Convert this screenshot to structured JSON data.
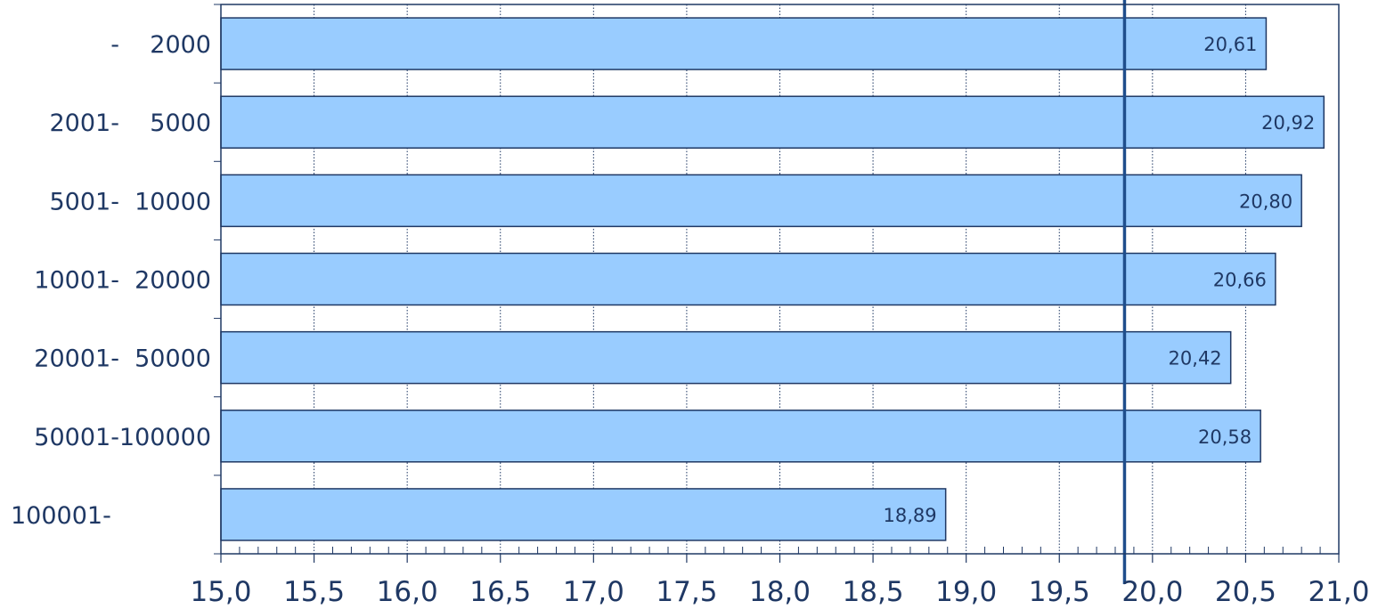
{
  "chart_data": {
    "type": "bar",
    "orientation": "horizontal",
    "categories": [
      "-    2000",
      "2001-    5000",
      "5001-  10000",
      "10001-  20000",
      "20001-  50000",
      "50001-100000",
      "100001-"
    ],
    "values": [
      20.61,
      20.92,
      20.8,
      20.66,
      20.42,
      20.58,
      18.89
    ],
    "value_labels": [
      "20,61",
      "20,92",
      "20,80",
      "20,66",
      "20,42",
      "20,58",
      "18,89"
    ],
    "x_ticks": [
      15.0,
      15.5,
      16.0,
      16.5,
      17.0,
      17.5,
      18.0,
      18.5,
      19.0,
      19.5,
      20.0,
      20.5,
      21.0
    ],
    "x_tick_labels": [
      "15,0",
      "15,5",
      "16,0",
      "16,5",
      "17,0",
      "17,5",
      "18,0",
      "18,5",
      "19,0",
      "19,5",
      "20,0",
      "20,5",
      "21,0"
    ],
    "xlim": [
      15.0,
      21.0
    ],
    "reference_line": 19.85,
    "grid": true,
    "title": "",
    "xlabel": "",
    "ylabel": "",
    "colors": {
      "bar_fill": "#99ccff",
      "bar_stroke": "#1f3864",
      "axis": "#1f3864",
      "reference_line": "#1f4e8c",
      "grid": "#1f3864"
    }
  }
}
